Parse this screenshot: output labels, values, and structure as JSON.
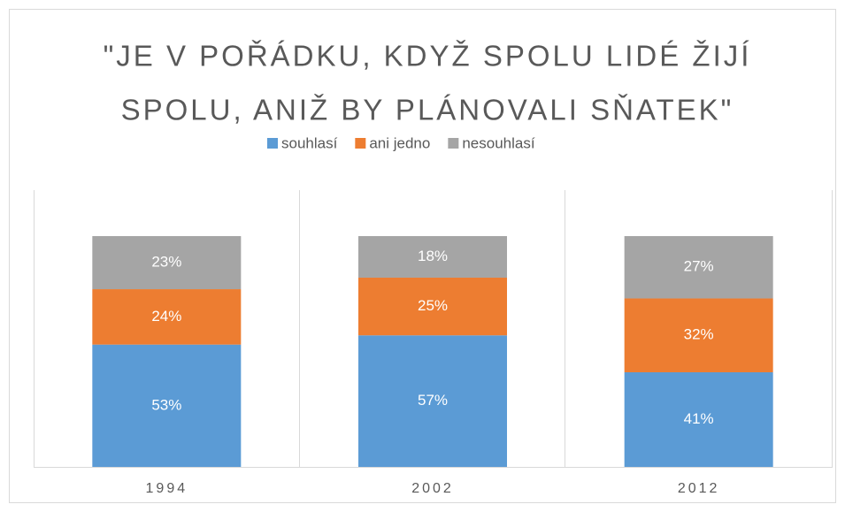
{
  "chart_data": {
    "type": "stacked_bar",
    "title": [
      "\"JE V POŘÁDKU, KDYŽ SPOLU LIDÉ ŽIJÍ",
      "SPOLU, ANIŽ BY PLÁNOVALI SŇATEK\""
    ],
    "categories": [
      "1994",
      "2002",
      "2012"
    ],
    "series": [
      {
        "name": "souhlasí",
        "color": "#5b9bd5",
        "values": [
          53,
          57,
          41
        ],
        "value_labels": [
          "53%",
          "57%",
          "41%"
        ]
      },
      {
        "name": "ani jedno",
        "color": "#ed7d31",
        "values": [
          24,
          25,
          32
        ],
        "value_labels": [
          "24%",
          "25%",
          "32%"
        ]
      },
      {
        "name": "nesouhlasí",
        "color": "#a5a5a5",
        "values": [
          23,
          18,
          27
        ],
        "value_labels": [
          "23%",
          "18%",
          "27%"
        ]
      }
    ],
    "ylim": [
      0,
      100
    ],
    "legend": "top"
  }
}
